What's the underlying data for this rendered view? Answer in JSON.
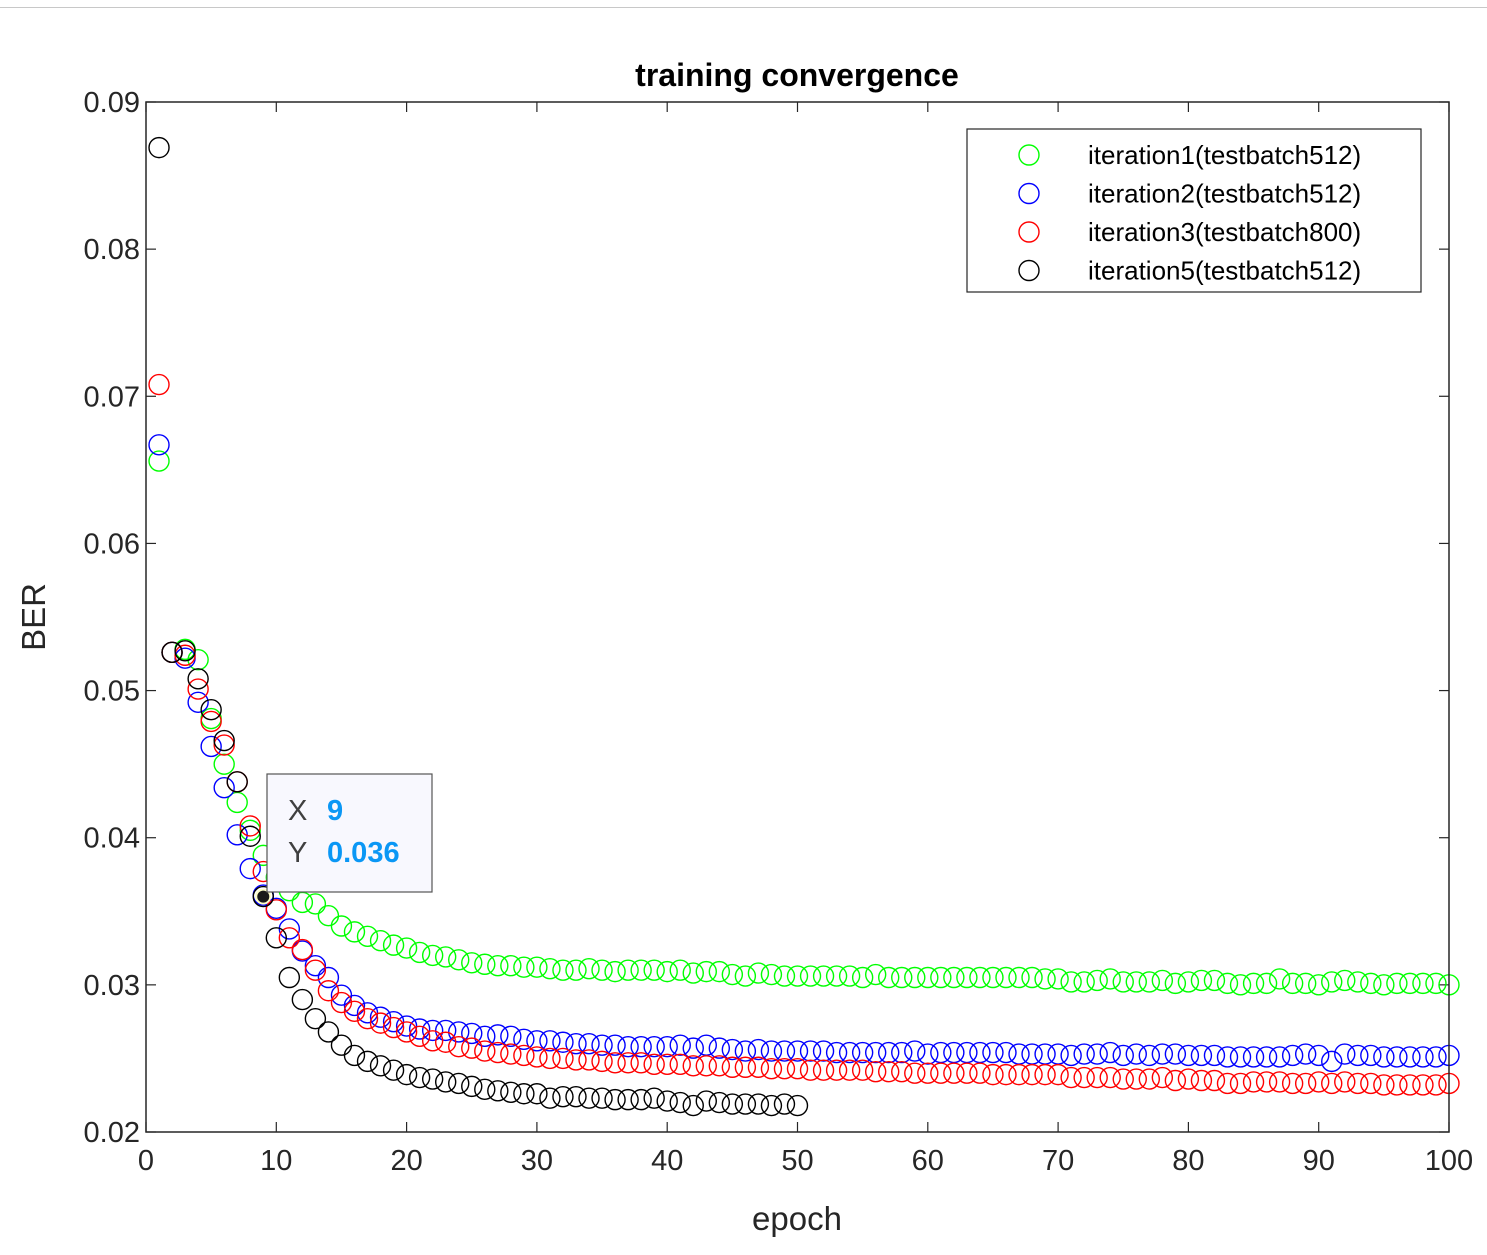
{
  "chart_data": {
    "type": "scatter",
    "title": "training convergence",
    "xlabel": "epoch",
    "ylabel": "BER",
    "xlim": [
      0,
      100
    ],
    "ylim": [
      0.02,
      0.09
    ],
    "xticks": [
      0,
      10,
      20,
      30,
      40,
      50,
      60,
      70,
      80,
      90,
      100
    ],
    "yticks": [
      0.02,
      0.03,
      0.04,
      0.05,
      0.06,
      0.07,
      0.08,
      0.09
    ],
    "xtick_labels": [
      "0",
      "10",
      "20",
      "30",
      "40",
      "50",
      "60",
      "70",
      "80",
      "90",
      "100"
    ],
    "ytick_labels": [
      "0.02",
      "0.03",
      "0.04",
      "0.05",
      "0.06",
      "0.07",
      "0.08",
      "0.09"
    ],
    "grid": false,
    "legend_position": "top-right",
    "marker": "open-circle",
    "series": [
      {
        "name": "iteration1(testbatch512)",
        "color": "#00ff00",
        "x": [
          1,
          2,
          3,
          4,
          5,
          6,
          7,
          8,
          9,
          10,
          11,
          12,
          13,
          14,
          15,
          16,
          17,
          18,
          19,
          20,
          21,
          22,
          23,
          24,
          25,
          26,
          27,
          28,
          29,
          30,
          31,
          32,
          33,
          34,
          35,
          36,
          37,
          38,
          39,
          40,
          41,
          42,
          43,
          44,
          45,
          46,
          47,
          48,
          49,
          50,
          51,
          52,
          53,
          54,
          55,
          56,
          57,
          58,
          59,
          60,
          61,
          62,
          63,
          64,
          65,
          66,
          67,
          68,
          69,
          70,
          71,
          72,
          73,
          74,
          75,
          76,
          77,
          78,
          79,
          80,
          81,
          82,
          83,
          84,
          85,
          86,
          87,
          88,
          89,
          90,
          91,
          92,
          93,
          94,
          95,
          96,
          97,
          98,
          99,
          100
        ],
        "y": [
          0.0656,
          0.0526,
          0.0528,
          0.0521,
          0.0481,
          0.045,
          0.0424,
          0.0405,
          0.0388,
          0.0373,
          0.0364,
          0.0356,
          0.0355,
          0.0347,
          0.034,
          0.0336,
          0.0333,
          0.033,
          0.0327,
          0.0325,
          0.0322,
          0.032,
          0.0319,
          0.0317,
          0.0315,
          0.0314,
          0.0313,
          0.0313,
          0.0312,
          0.0312,
          0.0311,
          0.031,
          0.031,
          0.0311,
          0.031,
          0.0309,
          0.031,
          0.031,
          0.031,
          0.0309,
          0.031,
          0.0308,
          0.0309,
          0.0309,
          0.0307,
          0.0306,
          0.0308,
          0.0307,
          0.0306,
          0.0306,
          0.0306,
          0.0306,
          0.0306,
          0.0306,
          0.0305,
          0.0307,
          0.0305,
          0.0305,
          0.0305,
          0.0305,
          0.0305,
          0.0305,
          0.0305,
          0.0305,
          0.0305,
          0.0305,
          0.0305,
          0.0305,
          0.0304,
          0.0304,
          0.0302,
          0.0302,
          0.0303,
          0.0304,
          0.0302,
          0.0302,
          0.0302,
          0.0303,
          0.0301,
          0.0302,
          0.0303,
          0.0303,
          0.0301,
          0.03,
          0.0301,
          0.0301,
          0.0304,
          0.0301,
          0.0301,
          0.03,
          0.0302,
          0.0303,
          0.0302,
          0.0301,
          0.03,
          0.0301,
          0.0301,
          0.0301,
          0.0301,
          0.03
        ]
      },
      {
        "name": "iteration2(testbatch512)",
        "color": "#0000ff",
        "x": [
          1,
          2,
          3,
          4,
          5,
          6,
          7,
          8,
          9,
          10,
          11,
          12,
          13,
          14,
          15,
          16,
          17,
          18,
          19,
          20,
          21,
          22,
          23,
          24,
          25,
          26,
          27,
          28,
          29,
          30,
          31,
          32,
          33,
          34,
          35,
          36,
          37,
          38,
          39,
          40,
          41,
          42,
          43,
          44,
          45,
          46,
          47,
          48,
          49,
          50,
          51,
          52,
          53,
          54,
          55,
          56,
          57,
          58,
          59,
          60,
          61,
          62,
          63,
          64,
          65,
          66,
          67,
          68,
          69,
          70,
          71,
          72,
          73,
          74,
          75,
          76,
          77,
          78,
          79,
          80,
          81,
          82,
          83,
          84,
          85,
          86,
          87,
          88,
          89,
          90,
          91,
          92,
          93,
          94,
          95,
          96,
          97,
          98,
          99,
          100
        ],
        "y": [
          0.0667,
          0.0526,
          0.0522,
          0.0492,
          0.0462,
          0.0434,
          0.0402,
          0.0379,
          0.0361,
          0.0352,
          0.0338,
          0.0323,
          0.0313,
          0.0305,
          0.0293,
          0.0286,
          0.0281,
          0.0278,
          0.0275,
          0.0272,
          0.027,
          0.0269,
          0.0269,
          0.0268,
          0.0267,
          0.0265,
          0.0266,
          0.0265,
          0.0263,
          0.0262,
          0.0262,
          0.0261,
          0.026,
          0.026,
          0.0259,
          0.0259,
          0.0258,
          0.0258,
          0.0258,
          0.0258,
          0.0259,
          0.0257,
          0.0259,
          0.0257,
          0.0256,
          0.0255,
          0.0256,
          0.0255,
          0.0255,
          0.0255,
          0.0255,
          0.0255,
          0.0254,
          0.0254,
          0.0254,
          0.0254,
          0.0254,
          0.0254,
          0.0255,
          0.0253,
          0.0254,
          0.0254,
          0.0254,
          0.0254,
          0.0254,
          0.0254,
          0.0253,
          0.0253,
          0.0253,
          0.0253,
          0.0252,
          0.0253,
          0.0253,
          0.0254,
          0.0252,
          0.0253,
          0.0252,
          0.0253,
          0.0253,
          0.0252,
          0.0252,
          0.0252,
          0.0251,
          0.0251,
          0.0251,
          0.0251,
          0.0251,
          0.0252,
          0.0253,
          0.0252,
          0.0248,
          0.0253,
          0.0252,
          0.0252,
          0.0251,
          0.0251,
          0.0251,
          0.0251,
          0.0251,
          0.0252
        ]
      },
      {
        "name": "iteration3(testbatch800)",
        "color": "#ff0000",
        "x": [
          1,
          2,
          3,
          4,
          5,
          6,
          7,
          8,
          9,
          10,
          11,
          12,
          13,
          14,
          15,
          16,
          17,
          18,
          19,
          20,
          21,
          22,
          23,
          24,
          25,
          26,
          27,
          28,
          29,
          30,
          31,
          32,
          33,
          34,
          35,
          36,
          37,
          38,
          39,
          40,
          41,
          42,
          43,
          44,
          45,
          46,
          47,
          48,
          49,
          50,
          51,
          52,
          53,
          54,
          55,
          56,
          57,
          58,
          59,
          60,
          61,
          62,
          63,
          64,
          65,
          66,
          67,
          68,
          69,
          70,
          71,
          72,
          73,
          74,
          75,
          76,
          77,
          78,
          79,
          80,
          81,
          82,
          83,
          84,
          85,
          86,
          87,
          88,
          89,
          90,
          91,
          92,
          93,
          94,
          95,
          96,
          97,
          98,
          99,
          100
        ],
        "y": [
          0.0708,
          0.0526,
          0.0524,
          0.0501,
          0.0479,
          0.0463,
          0.0438,
          0.0408,
          0.0377,
          0.0351,
          0.0332,
          0.0324,
          0.031,
          0.0296,
          0.0288,
          0.0282,
          0.0277,
          0.0274,
          0.0271,
          0.0268,
          0.0265,
          0.0262,
          0.0261,
          0.0258,
          0.0257,
          0.0255,
          0.0254,
          0.0253,
          0.0252,
          0.0251,
          0.025,
          0.025,
          0.0249,
          0.0249,
          0.0248,
          0.0247,
          0.0247,
          0.0247,
          0.0246,
          0.0246,
          0.0246,
          0.0245,
          0.0245,
          0.0245,
          0.0244,
          0.0244,
          0.0244,
          0.0243,
          0.0243,
          0.0243,
          0.0242,
          0.0242,
          0.0242,
          0.0242,
          0.0242,
          0.0241,
          0.0241,
          0.0241,
          0.024,
          0.024,
          0.024,
          0.024,
          0.024,
          0.024,
          0.0239,
          0.0239,
          0.0239,
          0.0239,
          0.0239,
          0.0239,
          0.0237,
          0.0237,
          0.0237,
          0.0237,
          0.0236,
          0.0236,
          0.0236,
          0.0237,
          0.0235,
          0.0236,
          0.0235,
          0.0235,
          0.0233,
          0.0233,
          0.0234,
          0.0234,
          0.0234,
          0.0233,
          0.0233,
          0.0234,
          0.0233,
          0.0234,
          0.0233,
          0.0233,
          0.0232,
          0.0232,
          0.0232,
          0.0232,
          0.0232,
          0.0233
        ]
      },
      {
        "name": "iteration5(testbatch512)",
        "color": "#000000",
        "x": [
          1,
          2,
          3,
          4,
          5,
          6,
          7,
          8,
          9,
          10,
          11,
          12,
          13,
          14,
          15,
          16,
          17,
          18,
          19,
          20,
          21,
          22,
          23,
          24,
          25,
          26,
          27,
          28,
          29,
          30,
          31,
          32,
          33,
          34,
          35,
          36,
          37,
          38,
          39,
          40,
          41,
          42,
          43,
          44,
          45,
          46,
          47,
          48,
          49,
          50
        ],
        "y": [
          0.0869,
          0.0526,
          0.0527,
          0.0508,
          0.0487,
          0.0466,
          0.0438,
          0.0401,
          0.036,
          0.0332,
          0.0305,
          0.029,
          0.0277,
          0.0268,
          0.0259,
          0.0252,
          0.0248,
          0.0245,
          0.0242,
          0.0239,
          0.0237,
          0.0236,
          0.0234,
          0.0233,
          0.0231,
          0.0229,
          0.0228,
          0.0227,
          0.0226,
          0.0226,
          0.0223,
          0.0224,
          0.0224,
          0.0223,
          0.0223,
          0.0222,
          0.0222,
          0.0222,
          0.0223,
          0.0221,
          0.022,
          0.0218,
          0.0221,
          0.022,
          0.0219,
          0.0219,
          0.0219,
          0.0218,
          0.0219,
          0.0218
        ]
      }
    ]
  },
  "datatip": {
    "x_label": "X",
    "y_label": "Y",
    "x_value": "9",
    "y_value": "0.036",
    "point_x": 9,
    "point_y": 0.036
  }
}
